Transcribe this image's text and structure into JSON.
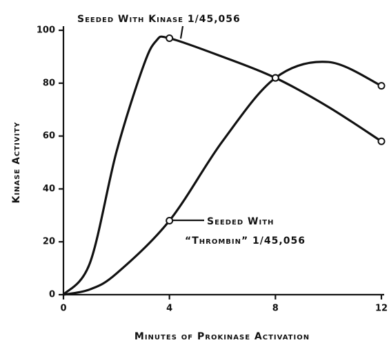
{
  "chart_data": {
    "type": "line",
    "y_label": "Kinase Activity",
    "x_label": "Minutes of Prokinase Activation",
    "annotations": [
      "Seeded With Kinase 1/45,056",
      "Seeded With",
      "“Thrombin” 1/45,056"
    ],
    "color": "#111111",
    "series": [
      {
        "name": "Seeded With Kinase 1/45,056",
        "x": [
          0,
          1,
          2,
          3,
          3.5,
          4,
          6,
          8,
          10,
          12
        ],
        "values": [
          0,
          12,
          54,
          86,
          96,
          97,
          90,
          82,
          71,
          58
        ]
      },
      {
        "name": "Seeded With “Thrombin” 1/45,056",
        "x": [
          0,
          1,
          2,
          4,
          6,
          8,
          10,
          12
        ],
        "values": [
          0,
          2,
          8,
          28,
          58,
          82,
          88,
          79
        ]
      }
    ],
    "xlim": [
      0,
      12
    ],
    "xticks": [
      0,
      4,
      8,
      12
    ],
    "ylim": [
      0,
      100
    ],
    "yticks": [
      0,
      20,
      40,
      60,
      80,
      100
    ]
  }
}
